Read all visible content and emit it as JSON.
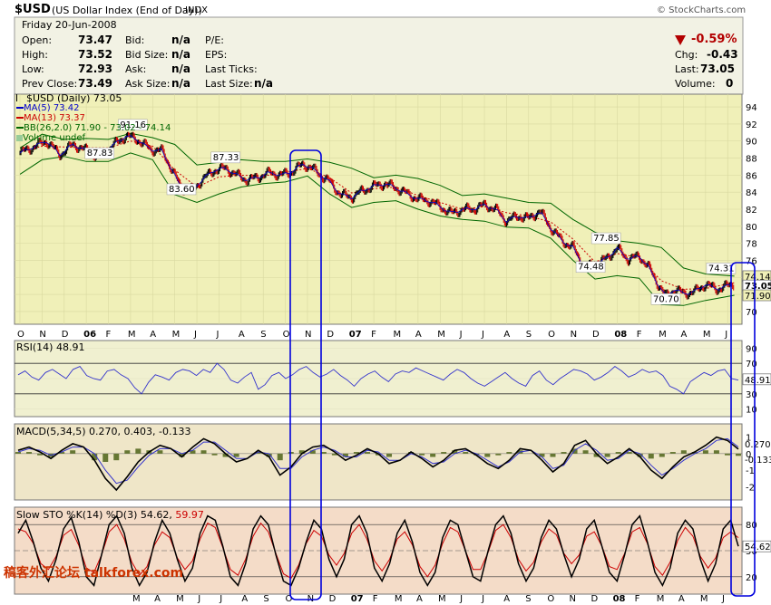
{
  "header": {
    "symbol": "$USD",
    "name": "(US Dollar Index (End of Day))",
    "exchange": "INDX",
    "copyright": "© StockCharts.com"
  },
  "quote": {
    "date": "Friday  20-Jun-2008",
    "open_label": "Open:",
    "open": "73.47",
    "high_label": "High:",
    "high": "73.52",
    "low_label": "Low:",
    "low": "72.93",
    "prev_close_label": "Prev Close:",
    "prev_close": "73.49",
    "bid_label": "Bid:",
    "bid": "n/a",
    "bid_size_label": "Bid Size:",
    "bid_size": "n/a",
    "ask_label": "Ask:",
    "ask": "n/a",
    "ask_size_label": "Ask Size:",
    "ask_size": "n/a",
    "pe_label": "P/E:",
    "eps_label": "EPS:",
    "last_ticks_label": "Last Ticks:",
    "last_size_label": "Last Size:",
    "last_size": "n/a",
    "pct_change": "-0.59%",
    "chg_label": "Chg:",
    "chg": "-0.43",
    "last_label": "Last:",
    "last": "73.05",
    "volume_label": "Volume:",
    "volume": "0",
    "down_color": "#b30000"
  },
  "watermark": "稿客外汇论坛 talkforex.com",
  "chart_data": [
    {
      "type": "line",
      "legend": [
        {
          "text": "$USD (Daily) 73.05",
          "color": "#000000"
        },
        {
          "text": "MA(5) 73.42",
          "color": "#0000cc"
        },
        {
          "text": "MA(13) 73.37",
          "color": "#cc0000"
        },
        {
          "text": "BB(26,2.0) 71.90 - 73.02 - 74.14",
          "color": "#006600"
        },
        {
          "text": "Volume undef",
          "color": "#006600"
        }
      ],
      "x_months": [
        "O",
        "N",
        "D",
        "06",
        "F",
        "M",
        "A",
        "M",
        "J",
        "J",
        "A",
        "S",
        "O",
        "N",
        "D",
        "07",
        "F",
        "M",
        "A",
        "M",
        "J",
        "J",
        "A",
        "S",
        "O",
        "N",
        "D",
        "08",
        "F",
        "M",
        "A",
        "M",
        "J"
      ],
      "y_ticks": [
        70,
        72,
        74,
        76,
        78,
        80,
        82,
        84,
        86,
        88,
        90,
        92,
        94
      ],
      "ylim": [
        68.5,
        95.5
      ],
      "annotations": [
        {
          "text": "91.16",
          "x": 5.1,
          "y": 91.16
        },
        {
          "text": "87.83",
          "x": 3.6,
          "y": 87.83
        },
        {
          "text": "87.33",
          "x": 9.3,
          "y": 87.33
        },
        {
          "text": "83.60",
          "x": 7.3,
          "y": 83.6
        },
        {
          "text": "77.85",
          "x": 26.5,
          "y": 77.85
        },
        {
          "text": "74.48",
          "x": 25.8,
          "y": 74.48
        },
        {
          "text": "74.31",
          "x": 31.7,
          "y": 74.31
        },
        {
          "text": "70.70",
          "x": 29.2,
          "y": 70.7
        }
      ],
      "right_labels": [
        {
          "text": "74.14",
          "y": 74.14
        },
        {
          "text": "73.05",
          "y": 73.05
        },
        {
          "text": "71.90",
          "y": 71.9
        }
      ],
      "price_series": [
        [
          0,
          88.6
        ],
        [
          0.6,
          89.3
        ],
        [
          1.2,
          90.0
        ],
        [
          1.8,
          88.4
        ],
        [
          2.4,
          89.6
        ],
        [
          3,
          88.9
        ],
        [
          3.6,
          88.0
        ],
        [
          4.2,
          89.5
        ],
        [
          4.8,
          90.6
        ],
        [
          5.3,
          90.2
        ],
        [
          5.9,
          89.0
        ],
        [
          6.4,
          88.9
        ],
        [
          6.8,
          87.0
        ],
        [
          7.3,
          84.4
        ],
        [
          7.8,
          84.3
        ],
        [
          8.3,
          85.6
        ],
        [
          8.8,
          86.6
        ],
        [
          9.3,
          86.8
        ],
        [
          9.8,
          86.0
        ],
        [
          10.3,
          85.4
        ],
        [
          10.8,
          85.8
        ],
        [
          11.3,
          86.3
        ],
        [
          11.8,
          86.0
        ],
        [
          12.3,
          86.4
        ],
        [
          12.8,
          87.3
        ],
        [
          13.2,
          86.8
        ],
        [
          13.6,
          86.0
        ],
        [
          14,
          85.2
        ],
        [
          14.5,
          83.7
        ],
        [
          15,
          83.4
        ],
        [
          15.5,
          84.2
        ],
        [
          16,
          84.7
        ],
        [
          16.5,
          85.0
        ],
        [
          17,
          84.5
        ],
        [
          17.5,
          83.8
        ],
        [
          18,
          83.2
        ],
        [
          18.5,
          83.0
        ],
        [
          19,
          82.3
        ],
        [
          19.5,
          81.5
        ],
        [
          20,
          82.0
        ],
        [
          20.5,
          82.0
        ],
        [
          21,
          82.5
        ],
        [
          21.5,
          82.0
        ],
        [
          22,
          80.6
        ],
        [
          22.5,
          81.2
        ],
        [
          23,
          80.9
        ],
        [
          23.5,
          81.8
        ],
        [
          24,
          79.8
        ],
        [
          24.5,
          78.3
        ],
        [
          25,
          77.5
        ],
        [
          25.5,
          75.3
        ],
        [
          26,
          75.4
        ],
        [
          26.5,
          76.2
        ],
        [
          27,
          77.4
        ],
        [
          27.5,
          76.1
        ],
        [
          28,
          76.5
        ],
        [
          28.4,
          75.3
        ],
        [
          28.8,
          73.4
        ],
        [
          29.2,
          71.8
        ],
        [
          29.6,
          72.6
        ],
        [
          30,
          72.1
        ],
        [
          30.5,
          72.3
        ],
        [
          31,
          73.2
        ],
        [
          31.5,
          72.6
        ],
        [
          32,
          73.0
        ],
        [
          32.3,
          73.3
        ]
      ],
      "ma13": [
        [
          0,
          88.7
        ],
        [
          1,
          89.4
        ],
        [
          2,
          89.3
        ],
        [
          3,
          89.2
        ],
        [
          4,
          89.2
        ],
        [
          5,
          90.0
        ],
        [
          6,
          89.4
        ],
        [
          7,
          86.6
        ],
        [
          8,
          84.6
        ],
        [
          9,
          85.8
        ],
        [
          10,
          86.0
        ],
        [
          11,
          85.9
        ],
        [
          12,
          86.3
        ],
        [
          13,
          86.8
        ],
        [
          14,
          85.7
        ],
        [
          15,
          83.9
        ],
        [
          16,
          84.4
        ],
        [
          17,
          84.6
        ],
        [
          18,
          83.6
        ],
        [
          19,
          82.8
        ],
        [
          20,
          82.0
        ],
        [
          21,
          82.3
        ],
        [
          22,
          81.6
        ],
        [
          23,
          81.2
        ],
        [
          24,
          80.5
        ],
        [
          25,
          78.5
        ],
        [
          26,
          75.8
        ],
        [
          27,
          76.8
        ],
        [
          28,
          76.3
        ],
        [
          29,
          73.6
        ],
        [
          30,
          72.6
        ],
        [
          31,
          72.7
        ],
        [
          32.3,
          73.37
        ]
      ],
      "bb_upper": [
        [
          0,
          89.2
        ],
        [
          1,
          90.8
        ],
        [
          2,
          90.2
        ],
        [
          3,
          90.3
        ],
        [
          4,
          90.2
        ],
        [
          5,
          90.9
        ],
        [
          6,
          90.4
        ],
        [
          7,
          89.6
        ],
        [
          8,
          87.2
        ],
        [
          9,
          87.5
        ],
        [
          10,
          87.8
        ],
        [
          11,
          87.6
        ],
        [
          12,
          87.6
        ],
        [
          13,
          87.9
        ],
        [
          14,
          87.5
        ],
        [
          15,
          86.8
        ],
        [
          16,
          85.7
        ],
        [
          17,
          86.0
        ],
        [
          18,
          85.6
        ],
        [
          19,
          84.8
        ],
        [
          20,
          83.6
        ],
        [
          21,
          83.8
        ],
        [
          22,
          83.3
        ],
        [
          23,
          82.8
        ],
        [
          24,
          82.7
        ],
        [
          25,
          80.8
        ],
        [
          26,
          79.3
        ],
        [
          27,
          78.3
        ],
        [
          28,
          78.0
        ],
        [
          29,
          77.5
        ],
        [
          30,
          75.1
        ],
        [
          31,
          74.4
        ],
        [
          32.3,
          74.14
        ]
      ],
      "bb_lower": [
        [
          0,
          86.1
        ],
        [
          1,
          87.8
        ],
        [
          2,
          88.2
        ],
        [
          3,
          87.6
        ],
        [
          4,
          87.6
        ],
        [
          5,
          88.6
        ],
        [
          6,
          87.8
        ],
        [
          7,
          83.7
        ],
        [
          8,
          82.8
        ],
        [
          9,
          83.8
        ],
        [
          10,
          84.6
        ],
        [
          11,
          85.0
        ],
        [
          12,
          85.2
        ],
        [
          13,
          85.9
        ],
        [
          14,
          83.8
        ],
        [
          15,
          82.2
        ],
        [
          16,
          82.8
        ],
        [
          17,
          83.0
        ],
        [
          18,
          82.0
        ],
        [
          19,
          81.2
        ],
        [
          20,
          80.8
        ],
        [
          21,
          80.6
        ],
        [
          22,
          79.9
        ],
        [
          23,
          79.8
        ],
        [
          24,
          78.6
        ],
        [
          25,
          76.0
        ],
        [
          26,
          73.8
        ],
        [
          27,
          74.2
        ],
        [
          28,
          73.9
        ],
        [
          29,
          70.8
        ],
        [
          30,
          70.7
        ],
        [
          31,
          71.3
        ],
        [
          32.3,
          71.9
        ]
      ]
    },
    {
      "type": "line",
      "title": "RSI(14) 48.91",
      "y_ticks": [
        10,
        30,
        50,
        70,
        90
      ],
      "ylim": [
        0,
        100
      ],
      "right_value": "48.91",
      "values": [
        55,
        60,
        52,
        48,
        58,
        62,
        56,
        50,
        62,
        66,
        54,
        50,
        48,
        60,
        62,
        55,
        50,
        38,
        30,
        45,
        55,
        52,
        48,
        58,
        62,
        60,
        54,
        62,
        58,
        70,
        62,
        48,
        44,
        52,
        58,
        36,
        42,
        54,
        58,
        50,
        55,
        62,
        66,
        58,
        52,
        56,
        62,
        54,
        48,
        40,
        50,
        56,
        60,
        52,
        46,
        56,
        60,
        58,
        64,
        60,
        56,
        52,
        48,
        56,
        62,
        58,
        50,
        44,
        40,
        46,
        52,
        58,
        50,
        44,
        40,
        54,
        60,
        48,
        42,
        50,
        56,
        62,
        60,
        56,
        48,
        52,
        58,
        66,
        60,
        52,
        56,
        62,
        58,
        60,
        54,
        40,
        36,
        30,
        46,
        52,
        58,
        54,
        60,
        62,
        50,
        48
      ]
    },
    {
      "type": "line",
      "title": "MACD(5,34,5) 0.270, 0.403, -0.133",
      "y_ticks": [
        -2,
        -1,
        0,
        1
      ],
      "ylim": [
        -2.8,
        1.8
      ],
      "right_labels": [
        "0.270",
        "-0.133"
      ],
      "macd": [
        0.2,
        0.4,
        0.1,
        -0.3,
        0.2,
        0.6,
        0.4,
        -0.4,
        -1.5,
        -2.2,
        -1.4,
        -0.5,
        0.1,
        0.5,
        0.3,
        -0.2,
        0.4,
        0.9,
        0.6,
        0.0,
        -0.5,
        -0.3,
        0.2,
        -0.2,
        -1.3,
        -0.8,
        0.0,
        0.4,
        0.5,
        0.1,
        -0.4,
        -0.1,
        0.3,
        0.0,
        -0.6,
        -0.4,
        0.1,
        -0.3,
        -0.8,
        -0.4,
        0.2,
        0.3,
        -0.1,
        -0.6,
        -0.9,
        -0.4,
        0.3,
        0.2,
        -0.4,
        -1.1,
        -0.6,
        0.5,
        0.8,
        0.0,
        -0.6,
        -0.2,
        0.3,
        -0.2,
        -1.0,
        -1.5,
        -0.8,
        -0.2,
        0.1,
        0.5,
        1.0,
        0.8,
        0.27
      ],
      "signal": [
        0.1,
        0.3,
        0.2,
        -0.1,
        0.1,
        0.4,
        0.4,
        0.0,
        -1.0,
        -1.8,
        -1.6,
        -0.8,
        -0.1,
        0.3,
        0.3,
        0.0,
        0.2,
        0.7,
        0.7,
        0.2,
        -0.3,
        -0.3,
        0.1,
        0.0,
        -0.9,
        -0.9,
        -0.2,
        0.2,
        0.4,
        0.2,
        -0.2,
        -0.2,
        0.2,
        0.1,
        -0.4,
        -0.4,
        0.0,
        -0.2,
        -0.6,
        -0.5,
        0.0,
        0.2,
        0.0,
        -0.4,
        -0.8,
        -0.5,
        0.1,
        0.2,
        -0.2,
        -0.9,
        -0.7,
        0.2,
        0.6,
        0.2,
        -0.4,
        -0.3,
        0.2,
        0.0,
        -0.7,
        -1.3,
        -0.9,
        -0.4,
        0.0,
        0.3,
        0.8,
        0.9,
        0.403
      ]
    },
    {
      "type": "line",
      "title": "Slow STO %K(14) %D(3) 54.62, 59.97",
      "title_k": "Slow STO %K(14) %D(3) 54.62,",
      "title_d": "59.97",
      "y_ticks": [
        20,
        50,
        80
      ],
      "ylim": [
        0,
        100
      ],
      "right_value": "54.62",
      "x_months": [
        "M",
        "A",
        "M",
        "J",
        "J",
        "A",
        "S",
        "O",
        "N",
        "D",
        "07",
        "F",
        "M",
        "A",
        "M",
        "J",
        "J",
        "A",
        "S",
        "O",
        "N",
        "D",
        "08",
        "F",
        "M",
        "A",
        "M",
        "J"
      ],
      "k": [
        70,
        85,
        60,
        30,
        15,
        40,
        75,
        88,
        60,
        20,
        10,
        45,
        80,
        90,
        70,
        30,
        10,
        25,
        60,
        85,
        70,
        40,
        15,
        30,
        70,
        90,
        85,
        55,
        20,
        10,
        35,
        75,
        90,
        80,
        45,
        15,
        10,
        30,
        60,
        85,
        75,
        40,
        20,
        40,
        80,
        90,
        70,
        30,
        15,
        35,
        70,
        85,
        60,
        25,
        10,
        25,
        65,
        85,
        80,
        50,
        20,
        15,
        50,
        80,
        90,
        70,
        35,
        15,
        30,
        65,
        85,
        75,
        45,
        20,
        40,
        75,
        85,
        55,
        25,
        15,
        45,
        80,
        90,
        60,
        25,
        10,
        30,
        70,
        85,
        75,
        40,
        15,
        35,
        75,
        85,
        55
      ]
    }
  ]
}
